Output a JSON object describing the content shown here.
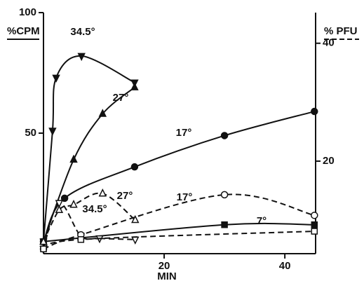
{
  "chart_data": {
    "type": "line",
    "ylabel": "%CPM",
    "y2label": "% PFU",
    "xlabel": "MIN",
    "xlim": [
      0,
      45.1
    ],
    "xticks": [
      20,
      40
    ],
    "ylim": [
      0,
      100
    ],
    "yticks": [
      50,
      100
    ],
    "y2lim": [
      4.3,
      45.2
    ],
    "y2ticks": [
      20,
      40
    ],
    "series": [
      {
        "name": "34.5°",
        "color": "#111",
        "marker": "triangle-down",
        "filled": true,
        "style": "solid",
        "x": [
          0,
          1.5,
          2.1,
          6.3,
          15.1
        ],
        "values": [
          5,
          51,
          73,
          82,
          71
        ]
      },
      {
        "name": "27°",
        "color": "#111",
        "marker": "triangle-up",
        "filled": true,
        "style": "solid",
        "x": [
          0,
          5,
          9.8,
          15.1
        ],
        "values": [
          5,
          39,
          58,
          69
        ]
      },
      {
        "name": "17°",
        "color": "#111",
        "marker": "circle",
        "filled": true,
        "style": "solid",
        "x": [
          0,
          3.5,
          15.1,
          30,
          44.9
        ],
        "values": [
          5,
          23,
          36,
          49,
          59
        ]
      },
      {
        "name": "7°",
        "color": "#111",
        "marker": "square",
        "filled": true,
        "style": "solid",
        "x": [
          0,
          30,
          44.9
        ],
        "values": [
          5,
          12,
          12
        ]
      },
      {
        "name": "34.5°",
        "color": "#111",
        "marker": "triangle-down",
        "filled": false,
        "style": "dashed",
        "axis": "y2",
        "x": [
          0,
          2.6,
          6.2,
          9.3,
          15.2
        ],
        "values": [
          5.1,
          12.9,
          7.3,
          6.9,
          6.7
        ]
      },
      {
        "name": "27°",
        "color": "#111",
        "marker": "triangle-up",
        "filled": false,
        "style": "dashed",
        "axis": "y2",
        "x": [
          0,
          2.6,
          5,
          9.8,
          15.2
        ],
        "values": [
          6.3,
          11.7,
          12.6,
          14.5,
          10
        ]
      },
      {
        "name": "17°",
        "color": "#111",
        "marker": "circle",
        "filled": false,
        "style": "dashed",
        "axis": "y2",
        "x": [
          0,
          6.2,
          30,
          44.9
        ],
        "values": [
          5.1,
          7.5,
          14.3,
          10.8
        ]
      },
      {
        "name": "7°",
        "color": "#111",
        "marker": "square",
        "filled": false,
        "style": "dashed",
        "axis": "y2",
        "x": [
          0,
          6.2,
          44.9
        ],
        "values": [
          5.1,
          6.7,
          8.1
        ]
      }
    ]
  }
}
